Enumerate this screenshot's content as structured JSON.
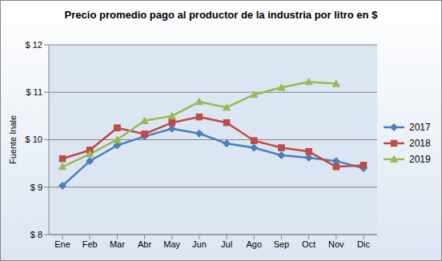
{
  "chart_data": {
    "type": "line",
    "title": "Precio promedio pago al productor de la industria por litro en $",
    "y_label": "Fuente Inale",
    "categories": [
      "Ene",
      "Feb",
      "Mar",
      "Abr",
      "May",
      "Jun",
      "Jul",
      "Ago",
      "Sep",
      "Oct",
      "Nov",
      "Dic"
    ],
    "series": [
      {
        "name": "2017",
        "color": "#4a7ebb",
        "marker": "diamond",
        "values": [
          9.03,
          9.55,
          9.88,
          10.07,
          10.23,
          10.13,
          9.92,
          9.83,
          9.67,
          9.62,
          9.55,
          9.4
        ]
      },
      {
        "name": "2018",
        "color": "#be4b48",
        "marker": "square",
        "values": [
          9.6,
          9.78,
          10.25,
          10.12,
          10.36,
          10.48,
          10.36,
          9.98,
          9.83,
          9.75,
          9.43,
          9.46
        ]
      },
      {
        "name": "2019",
        "color": "#98b954",
        "marker": "triangle",
        "values": [
          9.43,
          9.7,
          10.0,
          10.4,
          10.5,
          10.8,
          10.68,
          10.95,
          11.1,
          11.22,
          11.18,
          null
        ]
      }
    ],
    "ylim": [
      8,
      12
    ],
    "yticks": [
      {
        "value": 8,
        "label": "$ 8"
      },
      {
        "value": 9,
        "label": "$ 9"
      },
      {
        "value": 10,
        "label": "$ 10"
      },
      {
        "value": 11,
        "label": "$ 11"
      },
      {
        "value": 12,
        "label": "$ 12"
      }
    ],
    "grid": true,
    "legend": "right"
  }
}
